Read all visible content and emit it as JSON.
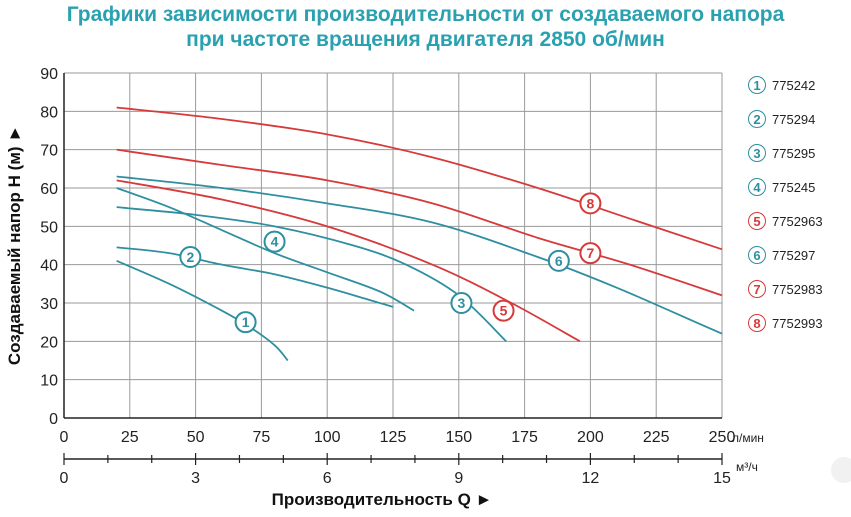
{
  "title_line1": "Графики зависимости производительности от создаваемого напора",
  "title_line2": "при частоте вращения двигателя 2850 об/мин",
  "colors": {
    "teal": "#2e8fa0",
    "red": "#d63a3a",
    "title": "#2aa1b0",
    "grid": "#9a9a9a"
  },
  "chart_data": {
    "type": "line",
    "title": "Графики зависимости производительности от создаваемого напора при частоте вращения двигателя 2850 об/мин",
    "ylabel": "Создаваемый напор H (м)",
    "xlabel": "Производительность Q",
    "x_unit": "л/мин",
    "x2_unit": "м³/ч",
    "xlim": [
      0,
      250
    ],
    "ylim": [
      0,
      90
    ],
    "x_ticks": [
      0,
      25,
      50,
      75,
      100,
      125,
      150,
      175,
      200,
      225,
      250
    ],
    "y_ticks": [
      0,
      10,
      20,
      30,
      40,
      50,
      60,
      70,
      80,
      90
    ],
    "x2_ticks": [
      0,
      3,
      6,
      9,
      12,
      15
    ],
    "x2_lim": [
      0,
      15
    ],
    "grid": true,
    "legend_position": "right",
    "series": [
      {
        "name": "775242",
        "label": "1",
        "color": "teal",
        "x": [
          20,
          40,
          60,
          70,
          80,
          85
        ],
        "y": [
          41,
          35,
          28,
          24,
          19,
          15
        ],
        "marker_x": 69,
        "marker_y": 25
      },
      {
        "name": "775294",
        "label": "2",
        "color": "teal",
        "x": [
          20,
          40,
          60,
          80,
          100,
          115,
          125
        ],
        "y": [
          44.5,
          43,
          40,
          37.5,
          34,
          31,
          29
        ],
        "marker_x": 48,
        "marker_y": 42
      },
      {
        "name": "775295",
        "label": "3",
        "color": "teal",
        "x": [
          20,
          50,
          80,
          110,
          130,
          150,
          168
        ],
        "y": [
          55,
          53,
          50,
          45,
          40,
          32,
          20
        ],
        "marker_x": 151,
        "marker_y": 30
      },
      {
        "name": "775245",
        "label": "4",
        "color": "teal",
        "x": [
          20,
          40,
          60,
          80,
          100,
          120,
          133
        ],
        "y": [
          60,
          55,
          49,
          43,
          38,
          33,
          28
        ],
        "marker_x": 80,
        "marker_y": 46
      },
      {
        "name": "7752963",
        "label": "5",
        "color": "red",
        "x": [
          20,
          60,
          100,
          140,
          170,
          196
        ],
        "y": [
          62,
          57,
          50,
          40,
          30,
          20
        ],
        "marker_x": 167,
        "marker_y": 28
      },
      {
        "name": "775297",
        "label": "6",
        "color": "teal",
        "x": [
          20,
          60,
          100,
          140,
          180,
          210,
          240,
          250
        ],
        "y": [
          63,
          60,
          56,
          51,
          42,
          34,
          25,
          22
        ],
        "marker_x": 188,
        "marker_y": 41
      },
      {
        "name": "7752983",
        "label": "7",
        "color": "red",
        "x": [
          20,
          60,
          100,
          140,
          180,
          215,
          250
        ],
        "y": [
          70,
          66,
          62,
          56,
          47,
          40,
          32
        ],
        "marker_x": 200,
        "marker_y": 43
      },
      {
        "name": "7752993",
        "label": "8",
        "color": "red",
        "x": [
          20,
          60,
          100,
          140,
          180,
          215,
          250
        ],
        "y": [
          81,
          78,
          74,
          68,
          60,
          52,
          44
        ],
        "marker_x": 200,
        "marker_y": 56
      }
    ]
  }
}
